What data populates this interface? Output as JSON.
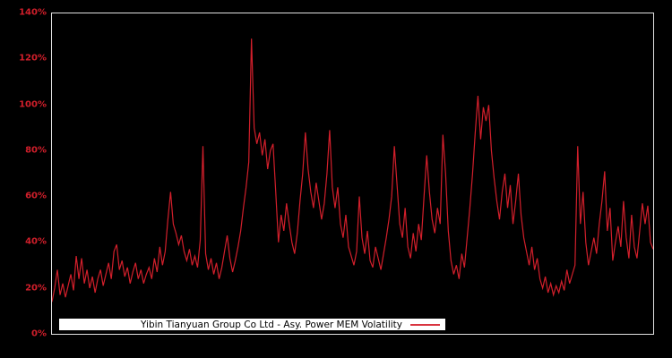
{
  "window": {
    "background": "#000000"
  },
  "colors": {
    "background": "#000000",
    "plot_border": "#e2e2e2",
    "series": "#d21f2b",
    "axis_label": "#d21f2b",
    "legend_background": "#ffffff",
    "legend_text": "#000000",
    "legend_swatch": "#d93540"
  },
  "y_axis": {
    "labels": [
      "140%",
      "120%",
      "100%",
      "80%",
      "60%",
      "40%",
      "20%",
      "0%"
    ]
  },
  "legend": {
    "label": "Yibin Tianyuan Group Co Ltd - Asy. Power MEM Volatility"
  },
  "chart_data": {
    "type": "line",
    "title": "",
    "xlabel": "",
    "ylabel": "",
    "ylim": [
      0,
      140
    ],
    "y_ticks_percent": [
      0,
      20,
      40,
      60,
      80,
      100,
      120,
      140
    ],
    "x_ticks": [],
    "grid": false,
    "legend_position": "inside-bottom-left",
    "legend_entries": [
      "Yibin Tianyuan Group Co Ltd - Asy. Power MEM Volatility"
    ],
    "series": [
      {
        "name": "Yibin Tianyuan Group Co Ltd - Asy. Power MEM Volatility",
        "unit": "%",
        "values": [
          14,
          20,
          28,
          17,
          22,
          16,
          21,
          26,
          19,
          34,
          24,
          33,
          22,
          28,
          20,
          25,
          18,
          24,
          28,
          21,
          26,
          31,
          24,
          36,
          39,
          28,
          32,
          25,
          29,
          22,
          27,
          31,
          24,
          28,
          22,
          26,
          29,
          24,
          33,
          27,
          38,
          30,
          36,
          50,
          62,
          48,
          44,
          39,
          43,
          36,
          32,
          37,
          30,
          34,
          29,
          41,
          82,
          35,
          28,
          33,
          26,
          31,
          24,
          29,
          36,
          43,
          33,
          27,
          32,
          38,
          45,
          55,
          64,
          75,
          129,
          90,
          83,
          88,
          78,
          85,
          72,
          80,
          83,
          62,
          40,
          52,
          45,
          57,
          48,
          40,
          35,
          44,
          58,
          70,
          88,
          72,
          62,
          55,
          66,
          58,
          50,
          57,
          70,
          89,
          64,
          55,
          64,
          48,
          42,
          52,
          38,
          34,
          30,
          36,
          60,
          42,
          35,
          45,
          32,
          29,
          38,
          33,
          28,
          35,
          42,
          50,
          60,
          82,
          65,
          48,
          42,
          55,
          38,
          33,
          44,
          36,
          48,
          41,
          60,
          78,
          62,
          50,
          44,
          55,
          48,
          87,
          70,
          45,
          32,
          26,
          30,
          24,
          35,
          29,
          42,
          55,
          70,
          88,
          104,
          85,
          99,
          93,
          100,
          80,
          68,
          58,
          50,
          62,
          70,
          55,
          65,
          48,
          58,
          70,
          52,
          42,
          36,
          30,
          38,
          28,
          33,
          24,
          20,
          25,
          18,
          22,
          17,
          21,
          18,
          23,
          19,
          28,
          22,
          26,
          30,
          82,
          48,
          62,
          40,
          30,
          36,
          42,
          35,
          48,
          58,
          71,
          45,
          55,
          32,
          40,
          47,
          38,
          58,
          42,
          33,
          52,
          38,
          33,
          45,
          57,
          48,
          56,
          40,
          37
        ]
      }
    ]
  }
}
